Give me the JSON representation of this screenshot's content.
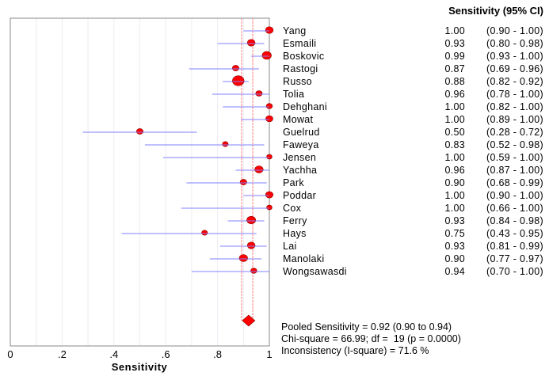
{
  "chart_data": {
    "type": "forest",
    "xlabel": "Sensitivity",
    "xlim": [
      0,
      1
    ],
    "x_ticks": [
      "0",
      ".2",
      ".4",
      ".6",
      ".8",
      "1"
    ],
    "grid": "vertical light lines every 0.1",
    "column_header": "Sensitivity (95% CI)",
    "studies": [
      {
        "name": "Yang",
        "value": 1.0,
        "lo": 0.9,
        "hi": 1.0,
        "value_text": "1.00",
        "ci_text": "(0.90 - 1.00)",
        "weight": 4.7
      },
      {
        "name": "Esmaili",
        "value": 0.93,
        "lo": 0.8,
        "hi": 0.98,
        "value_text": "0.93",
        "ci_text": "(0.80 - 0.98)",
        "weight": 4.7
      },
      {
        "name": "Boskovic",
        "value": 0.99,
        "lo": 0.93,
        "hi": 1.0,
        "value_text": "0.99",
        "ci_text": "(0.93 - 1.00)",
        "weight": 5.5
      },
      {
        "name": "Rastogi",
        "value": 0.87,
        "lo": 0.69,
        "hi": 0.96,
        "value_text": "0.87",
        "ci_text": "(0.69 - 0.96)",
        "weight": 4.0
      },
      {
        "name": "Russo",
        "value": 0.88,
        "lo": 0.82,
        "hi": 0.92,
        "value_text": "0.88",
        "ci_text": "(0.82 - 0.92)",
        "weight": 7.0
      },
      {
        "name": "Tolia",
        "value": 0.96,
        "lo": 0.78,
        "hi": 1.0,
        "value_text": "0.96",
        "ci_text": "(0.78 - 1.00)",
        "weight": 3.9
      },
      {
        "name": "Dehghani",
        "value": 1.0,
        "lo": 0.82,
        "hi": 1.0,
        "value_text": "1.00",
        "ci_text": "(0.82 - 1.00)",
        "weight": 3.7
      },
      {
        "name": "Mowat",
        "value": 1.0,
        "lo": 0.89,
        "hi": 1.0,
        "value_text": "1.00",
        "ci_text": "(0.89 - 1.00)",
        "weight": 4.3
      },
      {
        "name": "Guelrud",
        "value": 0.5,
        "lo": 0.28,
        "hi": 0.72,
        "value_text": "0.50",
        "ci_text": "(0.28 - 0.72)",
        "weight": 4.0
      },
      {
        "name": "Faweya",
        "value": 0.83,
        "lo": 0.52,
        "hi": 0.98,
        "value_text": "0.83",
        "ci_text": "(0.52 - 0.98)",
        "weight": 3.5
      },
      {
        "name": "Jensen",
        "value": 1.0,
        "lo": 0.59,
        "hi": 1.0,
        "value_text": "1.00",
        "ci_text": "(0.59 - 1.00)",
        "weight": 3.3
      },
      {
        "name": "Yachha",
        "value": 0.96,
        "lo": 0.87,
        "hi": 1.0,
        "value_text": "0.96",
        "ci_text": "(0.87 - 1.00)",
        "weight": 5.0
      },
      {
        "name": "Park",
        "value": 0.9,
        "lo": 0.68,
        "hi": 0.99,
        "value_text": "0.90",
        "ci_text": "(0.68 - 0.99)",
        "weight": 4.0
      },
      {
        "name": "Poddar",
        "value": 1.0,
        "lo": 0.9,
        "hi": 1.0,
        "value_text": "1.00",
        "ci_text": "(0.90 - 1.00)",
        "weight": 4.5
      },
      {
        "name": "Cox",
        "value": 1.0,
        "lo": 0.66,
        "hi": 1.0,
        "value_text": "1.00",
        "ci_text": "(0.66 - 1.00)",
        "weight": 3.3
      },
      {
        "name": "Ferry",
        "value": 0.93,
        "lo": 0.84,
        "hi": 0.98,
        "value_text": "0.93",
        "ci_text": "(0.84 - 0.98)",
        "weight": 5.3
      },
      {
        "name": "Hays",
        "value": 0.75,
        "lo": 0.43,
        "hi": 0.95,
        "value_text": "0.75",
        "ci_text": "(0.43 - 0.95)",
        "weight": 3.5
      },
      {
        "name": "Lai",
        "value": 0.93,
        "lo": 0.81,
        "hi": 0.99,
        "value_text": "0.93",
        "ci_text": "(0.81 - 0.99)",
        "weight": 4.7
      },
      {
        "name": "Manolaki",
        "value": 0.9,
        "lo": 0.77,
        "hi": 0.97,
        "value_text": "0.90",
        "ci_text": "(0.77 - 0.97)",
        "weight": 5.0
      },
      {
        "name": "Wongsawasdi",
        "value": 0.94,
        "lo": 0.7,
        "hi": 1.0,
        "value_text": "0.94",
        "ci_text": "(0.70 - 1.00)",
        "weight": 3.7
      }
    ],
    "pooled": {
      "value": 0.92,
      "lo": 0.9,
      "hi": 0.94
    },
    "summary_lines": [
      "Pooled Sensitivity = 0.92 (0.90 to 0.94)",
      "Chi-square = 66.99; df =  19 (p = 0.0000)",
      "Inconsistency (I-square) = 71.6 %"
    ],
    "colors": {
      "marker": "#ff0000",
      "ci_line": "#8080ff",
      "pooled_line": "#ff8080",
      "grid": "#ececf4",
      "frame": "#888888"
    }
  }
}
